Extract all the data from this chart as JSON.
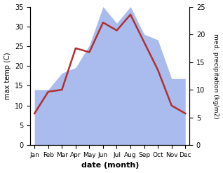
{
  "months": [
    "Jan",
    "Feb",
    "Mar",
    "Apr",
    "May",
    "Jun",
    "Jul",
    "Aug",
    "Sep",
    "Oct",
    "Nov",
    "Dec"
  ],
  "temperature": [
    8,
    13.5,
    14,
    24.5,
    23.5,
    31,
    29,
    33,
    26,
    19,
    10,
    8
  ],
  "precipitation": [
    10,
    10,
    13,
    14,
    18,
    25,
    22,
    25,
    20,
    19,
    12,
    12
  ],
  "temp_color": "#b03030",
  "precip_color": "#aabbee",
  "xlabel": "date (month)",
  "ylabel_left": "max temp (C)",
  "ylabel_right": "med. precipitation (kg/m2)",
  "ylim_left": [
    0,
    35
  ],
  "ylim_right": [
    0,
    25
  ],
  "yticks_left": [
    0,
    5,
    10,
    15,
    20,
    25,
    30,
    35
  ],
  "yticks_right": [
    0,
    5,
    10,
    15,
    20,
    25
  ],
  "background_color": "#ffffff",
  "line_width": 1.8
}
